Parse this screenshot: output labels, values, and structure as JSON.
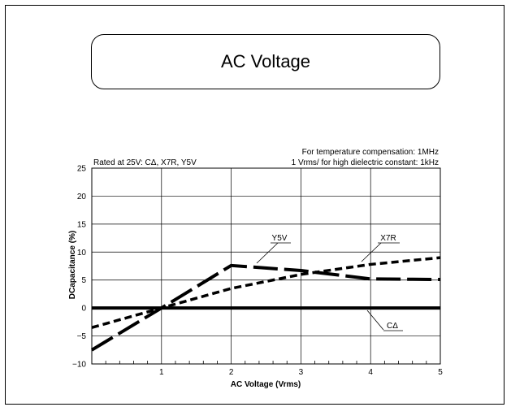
{
  "title": "AC Voltage",
  "chart_data": {
    "type": "line",
    "title": "AC Voltage",
    "xlabel": "AC Voltage (Vrms)",
    "ylabel": "DCapacitance (%)",
    "xlim": [
      0,
      5
    ],
    "ylim": [
      -10,
      25
    ],
    "x_ticks": [
      "1",
      "2",
      "3",
      "4",
      "5"
    ],
    "y_ticks": [
      "25",
      "20",
      "15",
      "10",
      "5",
      "0",
      "−5",
      "−10"
    ],
    "grid": true,
    "annotations": {
      "rated": "Rated at 25V: CΔ, X7R, Y5V",
      "note_line1": "For temperature compensation: 1MHz",
      "note_line2": "1 Vrms/ for high dielectric constant: 1kHz"
    },
    "series": [
      {
        "name": "Y5V",
        "style": "long-dash",
        "x": [
          0,
          1,
          2,
          3,
          4,
          5
        ],
        "y": [
          -7.5,
          0,
          7.6,
          6.7,
          5.2,
          5.1
        ]
      },
      {
        "name": "X7R",
        "style": "dash",
        "x": [
          0,
          1,
          2,
          3,
          4,
          5
        ],
        "y": [
          -3.5,
          0,
          3.5,
          6.0,
          7.8,
          9.0
        ]
      },
      {
        "name": "CΔ",
        "style": "solid",
        "x": [
          0,
          1,
          2,
          3,
          4,
          5
        ],
        "y": [
          0,
          0,
          0,
          0,
          0,
          0
        ]
      }
    ]
  }
}
